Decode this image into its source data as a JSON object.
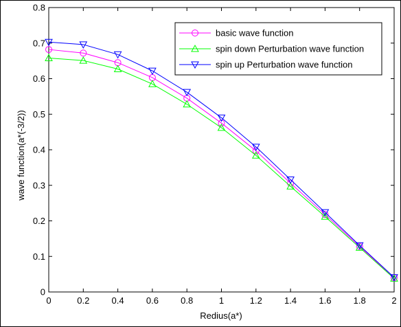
{
  "chart_data": {
    "type": "line",
    "title": "",
    "xlabel": "Redius(a*)",
    "ylabel": "wave function(a*(-3/2))",
    "xlim": [
      0,
      2
    ],
    "ylim": [
      0,
      0.8
    ],
    "xticks": [
      "0",
      "0.2",
      "0.4",
      "0.6",
      "0.8",
      "1",
      "1.2",
      "1.4",
      "1.6",
      "1.8",
      "2"
    ],
    "yticks": [
      "0",
      "0.1",
      "0.2",
      "0.3",
      "0.4",
      "0.5",
      "0.6",
      "0.7",
      "0.8"
    ],
    "legend_position": "top-right",
    "grid": false,
    "x": [
      0,
      0.2,
      0.4,
      0.6,
      0.8,
      1.0,
      1.2,
      1.4,
      1.6,
      1.8,
      2.0
    ],
    "series": [
      {
        "name": "basic wave function",
        "color": "#ff00ff",
        "marker": "circle",
        "values": [
          0.682,
          0.672,
          0.645,
          0.603,
          0.545,
          0.475,
          0.397,
          0.306,
          0.218,
          0.128,
          0.04
        ]
      },
      {
        "name": "spin down Perturbation wave function",
        "color": "#00ff00",
        "marker": "triangle-up",
        "values": [
          0.658,
          0.651,
          0.627,
          0.585,
          0.528,
          0.462,
          0.384,
          0.297,
          0.212,
          0.125,
          0.038
        ]
      },
      {
        "name": "spin up Perturbation wave function",
        "color": "#0000ff",
        "marker": "triangle-down",
        "values": [
          0.703,
          0.696,
          0.668,
          0.622,
          0.562,
          0.49,
          0.408,
          0.316,
          0.224,
          0.131,
          0.041
        ]
      }
    ]
  }
}
